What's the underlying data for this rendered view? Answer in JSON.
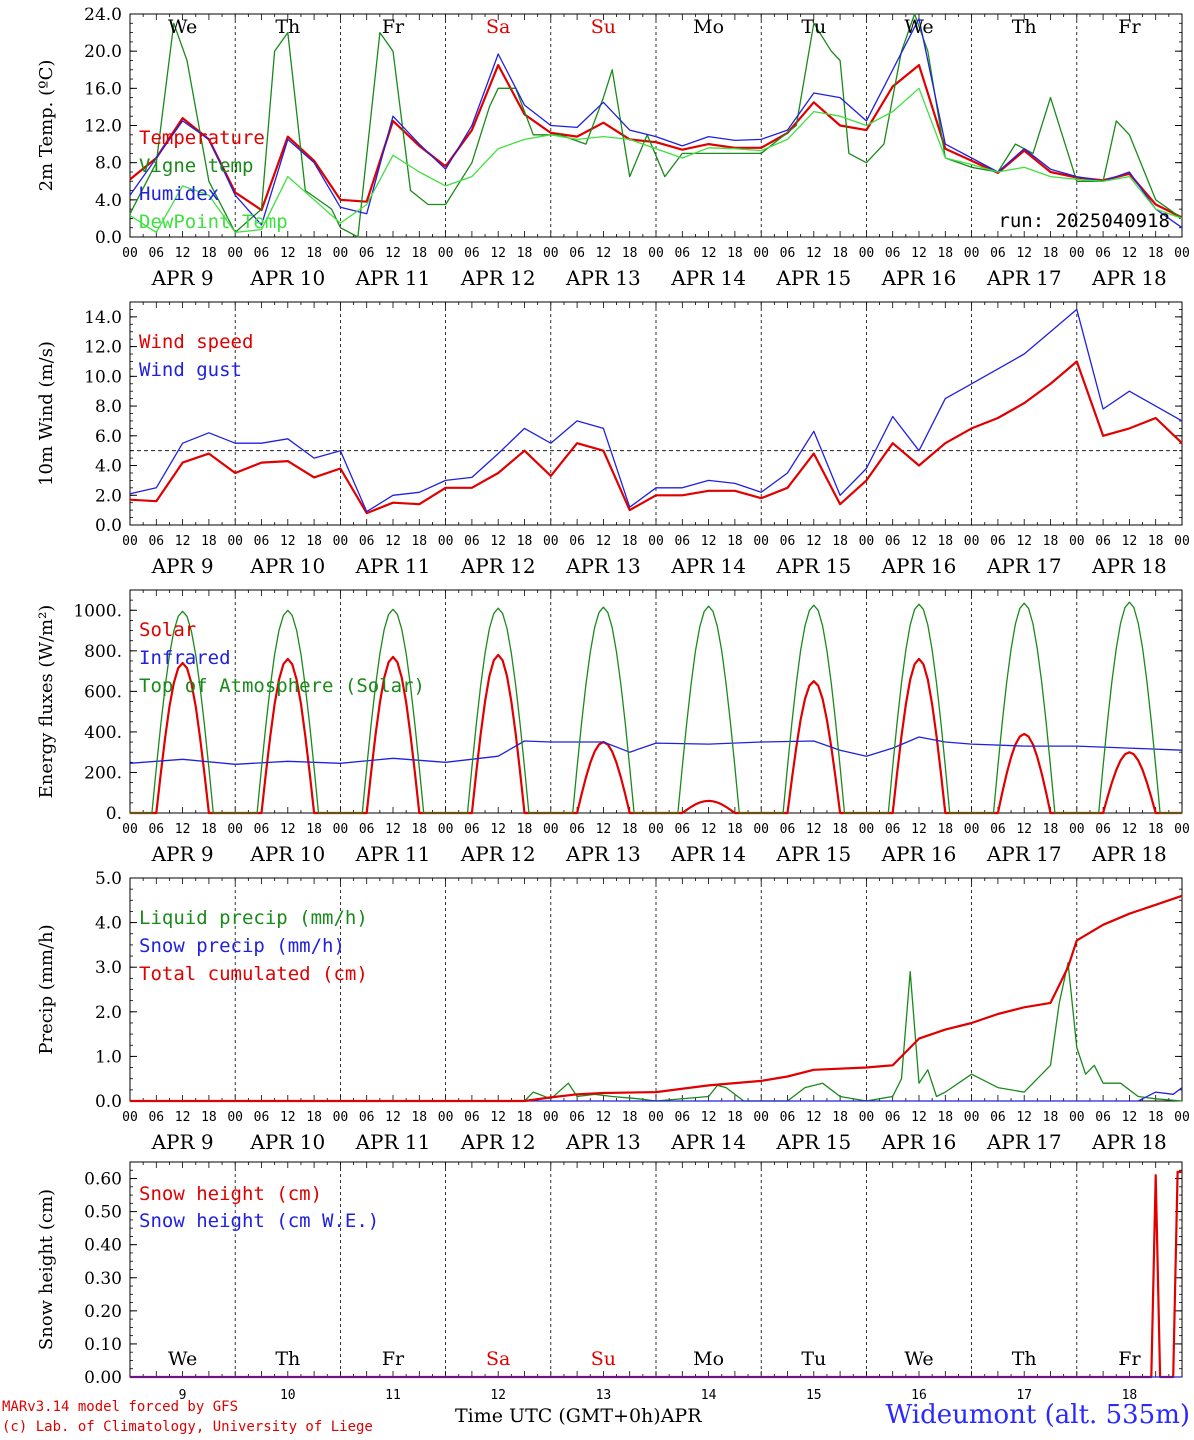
{
  "station_label": "Wideumont (alt. 535m)",
  "run_label": "run: 2025040918",
  "footer": {
    "model": "MARv3.14 model forced by GFS",
    "copyright": "(c) Lab. of Climatology, University of Liege",
    "time_axis": "Time UTC (GMT+0h)",
    "month": "APR"
  },
  "colors": {
    "red": "#e00000",
    "green": "#1a8a1a",
    "blue": "#2020e0",
    "lightgreen": "#40e040"
  },
  "day_names": [
    "We",
    "Th",
    "Fr",
    "Sa",
    "Su",
    "Mo",
    "Tu",
    "We",
    "Th",
    "Fr"
  ],
  "weekend_days": [
    3,
    4
  ],
  "day_dates": [
    "APR  9",
    "APR 10",
    "APR 11",
    "APR 12",
    "APR 13",
    "APR 14",
    "APR 15",
    "APR 16",
    "APR 17",
    "APR 18"
  ],
  "day_numbers": [
    "9",
    "10",
    "11",
    "12",
    "13",
    "14",
    "15",
    "16",
    "17",
    "18"
  ],
  "hour_ticks": [
    "00",
    "06",
    "12",
    "18"
  ],
  "chart_data": [
    {
      "type": "line",
      "ylabel": "2m Temp. (ºC)",
      "ylim": [
        0,
        24
      ],
      "yticks": [
        "0.0",
        "4.0",
        "8.0",
        "12.0",
        "16.0",
        "20.0",
        "24.0"
      ],
      "x_unit": "hours since APR 9 00 UTC",
      "x_range": [
        0,
        240
      ],
      "legend": [
        "Temperature",
        "Vigne temp",
        "Humidex",
        "DewPoint Temp"
      ],
      "series": [
        {
          "name": "Temperature",
          "color": "red",
          "x": [
            0,
            6,
            12,
            18,
            24,
            30,
            36,
            42,
            48,
            54,
            60,
            66,
            72,
            78,
            84,
            90,
            96,
            102,
            108,
            114,
            120,
            126,
            132,
            138,
            144,
            150,
            156,
            162,
            168,
            174,
            180,
            186,
            192,
            198,
            204,
            210,
            216,
            222,
            228,
            234,
            240
          ],
          "y": [
            6.2,
            8.5,
            12.8,
            10.5,
            4.8,
            2.9,
            10.8,
            8.2,
            4.0,
            3.8,
            12.5,
            9.8,
            7.6,
            11.5,
            18.5,
            13.2,
            11.2,
            10.8,
            12.3,
            10.5,
            10.2,
            9.4,
            10.0,
            9.6,
            9.6,
            11.2,
            14.5,
            12.0,
            11.5,
            16.2,
            18.5,
            9.5,
            8.2,
            6.9,
            9.3,
            7.0,
            6.4,
            6.1,
            6.8,
            3.5,
            2.1
          ]
        },
        {
          "name": "Vigne temp",
          "color": "green",
          "x": [
            0,
            6,
            10,
            13,
            18,
            24,
            30,
            33,
            36,
            40,
            46,
            48,
            52,
            57,
            60,
            64,
            68,
            72,
            78,
            82,
            84,
            88,
            92,
            98,
            104,
            108,
            110,
            114,
            118,
            122,
            126,
            132,
            138,
            144,
            152,
            156,
            160,
            162,
            164,
            168,
            172,
            176,
            179,
            182,
            186,
            192,
            198,
            202,
            206,
            210,
            216,
            222,
            225,
            228,
            234,
            240
          ],
          "y": [
            2.5,
            8.0,
            23.0,
            19.0,
            6.0,
            0.5,
            3.0,
            20.0,
            22.0,
            5.0,
            3.0,
            1.0,
            0.0,
            22.0,
            20.0,
            5.0,
            3.5,
            3.5,
            8.0,
            14.0,
            16.0,
            16.0,
            11.0,
            11.0,
            10.0,
            15.0,
            18.0,
            6.5,
            11.0,
            6.5,
            9.0,
            9.0,
            9.0,
            9.0,
            12.0,
            23.0,
            20.0,
            19.0,
            9.0,
            8.0,
            10.0,
            20.0,
            24.0,
            20.0,
            8.5,
            7.5,
            7.0,
            10.0,
            9.0,
            15.0,
            6.0,
            6.0,
            12.5,
            11.0,
            4.0,
            2.0
          ]
        },
        {
          "name": "Humidex",
          "color": "blue",
          "x": [
            0,
            6,
            12,
            18,
            24,
            30,
            36,
            42,
            48,
            54,
            60,
            66,
            72,
            78,
            84,
            90,
            96,
            102,
            108,
            114,
            120,
            126,
            132,
            138,
            144,
            150,
            156,
            162,
            168,
            174,
            180,
            186,
            192,
            198,
            204,
            210,
            216,
            222,
            228,
            234,
            240
          ],
          "y": [
            4.5,
            8.5,
            12.5,
            10.5,
            4.5,
            1.3,
            10.5,
            8.0,
            3.2,
            2.5,
            13.0,
            10.0,
            7.3,
            12.0,
            19.7,
            14.2,
            12.0,
            11.8,
            14.5,
            11.5,
            10.8,
            9.8,
            10.8,
            10.4,
            10.5,
            11.5,
            15.5,
            15.0,
            12.5,
            18.0,
            23.5,
            10.0,
            8.5,
            7.0,
            9.5,
            7.3,
            6.5,
            6.0,
            7.0,
            3.0,
            1.0
          ]
        },
        {
          "name": "DewPoint Temp",
          "color": "lightgreen",
          "x": [
            0,
            6,
            12,
            18,
            24,
            30,
            36,
            42,
            48,
            54,
            60,
            66,
            72,
            78,
            84,
            90,
            96,
            102,
            108,
            114,
            120,
            126,
            132,
            138,
            144,
            150,
            156,
            162,
            168,
            174,
            180,
            186,
            192,
            198,
            204,
            210,
            216,
            222,
            228,
            234,
            240
          ],
          "y": [
            2.3,
            0.5,
            5.5,
            4.5,
            0.5,
            0.8,
            6.5,
            4.0,
            1.5,
            3.5,
            8.8,
            7.0,
            5.5,
            6.5,
            9.5,
            10.5,
            11.0,
            10.5,
            10.8,
            10.5,
            9.5,
            8.5,
            9.6,
            9.5,
            9.3,
            10.5,
            13.5,
            13.0,
            12.0,
            13.5,
            16.0,
            8.5,
            7.8,
            7.0,
            7.5,
            6.5,
            6.2,
            6.0,
            6.5,
            3.0,
            2.0
          ]
        }
      ]
    },
    {
      "type": "line",
      "ylabel": "10m Wind (m/s)",
      "ylim": [
        0,
        15
      ],
      "yticks": [
        "0.0",
        "2.0",
        "4.0",
        "6.0",
        "8.0",
        "10.0",
        "12.0",
        "14.0"
      ],
      "x_range": [
        0,
        240
      ],
      "reference_line": 5.0,
      "legend": [
        "Wind speed",
        "Wind gust"
      ],
      "series": [
        {
          "name": "Wind speed",
          "color": "red",
          "x": [
            0,
            6,
            12,
            18,
            24,
            30,
            36,
            42,
            48,
            54,
            60,
            66,
            72,
            78,
            84,
            90,
            96,
            102,
            108,
            114,
            120,
            126,
            132,
            138,
            144,
            150,
            156,
            162,
            168,
            174,
            180,
            186,
            192,
            198,
            204,
            210,
            216,
            222,
            228,
            234,
            240
          ],
          "y": [
            1.7,
            1.6,
            4.2,
            4.8,
            3.5,
            4.2,
            4.3,
            3.2,
            3.8,
            0.8,
            1.5,
            1.4,
            2.5,
            2.5,
            3.5,
            5.0,
            3.3,
            5.5,
            5.0,
            1.0,
            2.0,
            2.0,
            2.3,
            2.3,
            1.8,
            2.5,
            4.8,
            1.4,
            3.0,
            5.5,
            4.0,
            5.5,
            6.5,
            7.2,
            8.2,
            9.5,
            11.0,
            6.0,
            6.5,
            7.2,
            5.5
          ]
        },
        {
          "name": "Wind gust",
          "color": "blue",
          "x": [
            0,
            6,
            12,
            18,
            24,
            30,
            36,
            42,
            48,
            54,
            60,
            66,
            72,
            78,
            84,
            90,
            96,
            102,
            108,
            114,
            120,
            126,
            132,
            138,
            144,
            150,
            156,
            162,
            168,
            174,
            180,
            186,
            192,
            198,
            204,
            210,
            216,
            222,
            228,
            234,
            240
          ],
          "y": [
            2.1,
            2.5,
            5.5,
            6.2,
            5.5,
            5.5,
            5.8,
            4.5,
            5.0,
            0.9,
            2.0,
            2.2,
            3.0,
            3.2,
            4.8,
            6.5,
            5.5,
            7.0,
            6.5,
            1.2,
            2.5,
            2.5,
            3.0,
            2.8,
            2.2,
            3.5,
            6.3,
            2.0,
            3.8,
            7.3,
            5.0,
            8.5,
            9.5,
            10.5,
            11.5,
            13.0,
            14.5,
            7.8,
            9.0,
            8.0,
            7.0
          ]
        }
      ]
    },
    {
      "type": "line",
      "ylabel": "Energy fluxes (W/m²)",
      "ylim": [
        0,
        1100
      ],
      "yticks": [
        "0.",
        "200.",
        "400.",
        "600.",
        "800.",
        "1000."
      ],
      "x_range": [
        0,
        240
      ],
      "legend": [
        "Solar",
        "Infrared",
        "Top of Atmosphere (Solar)"
      ],
      "series": [
        {
          "name": "Solar",
          "color": "red",
          "days_peak": [
            740,
            760,
            770,
            780,
            350,
            60,
            650,
            760,
            390,
            300
          ]
        },
        {
          "name": "Infrared",
          "color": "blue",
          "x": [
            0,
            12,
            24,
            36,
            48,
            60,
            72,
            84,
            90,
            96,
            108,
            114,
            120,
            132,
            144,
            156,
            162,
            168,
            174,
            180,
            186,
            192,
            204,
            216,
            228,
            240
          ],
          "y": [
            245,
            265,
            240,
            255,
            245,
            270,
            250,
            280,
            355,
            350,
            350,
            300,
            345,
            340,
            350,
            355,
            310,
            280,
            320,
            375,
            350,
            340,
            330,
            330,
            320,
            310
          ]
        },
        {
          "name": "Top of Atmosphere (Solar)",
          "color": "green",
          "days_peak": [
            995,
            1000,
            1005,
            1010,
            1015,
            1020,
            1025,
            1030,
            1035,
            1040
          ]
        }
      ]
    },
    {
      "type": "line",
      "ylabel": "Precip (mm/h)",
      "ylim": [
        0,
        5
      ],
      "yticks": [
        "0.0",
        "1.0",
        "2.0",
        "3.0",
        "4.0",
        "5.0"
      ],
      "x_range": [
        0,
        240
      ],
      "legend": [
        "Liquid precip (mm/h)",
        "Snow precip (mm/h)",
        "Total cumulated (cm)"
      ],
      "series": [
        {
          "name": "Liquid precip (mm/h)",
          "color": "green",
          "x": [
            0,
            90,
            92,
            96,
            100,
            102,
            106,
            110,
            116,
            120,
            132,
            134,
            136,
            140,
            150,
            154,
            158,
            162,
            168,
            174,
            176,
            178,
            180,
            182,
            184,
            186,
            192,
            198,
            204,
            210,
            212,
            214,
            216,
            218,
            220,
            222,
            226,
            230,
            234,
            240
          ],
          "y": [
            0,
            0,
            0.2,
            0.05,
            0.4,
            0.1,
            0.15,
            0.1,
            0.05,
            0,
            0.1,
            0.35,
            0.3,
            0,
            0,
            0.3,
            0.4,
            0.1,
            0,
            0.1,
            0.5,
            2.9,
            0.4,
            0.7,
            0.1,
            0.2,
            0.6,
            0.3,
            0.2,
            0.8,
            2.2,
            3.1,
            1.2,
            0.6,
            0.8,
            0.4,
            0.4,
            0.1,
            0.05,
            0.0
          ]
        },
        {
          "name": "Snow precip (mm/h)",
          "color": "blue",
          "x": [
            0,
            230,
            234,
            238,
            240
          ],
          "y": [
            0,
            0,
            0.2,
            0.15,
            0.3
          ]
        },
        {
          "name": "Total cumulated (cm)",
          "color": "red",
          "x": [
            0,
            90,
            96,
            102,
            108,
            120,
            132,
            144,
            150,
            156,
            168,
            174,
            176,
            180,
            186,
            192,
            198,
            204,
            210,
            212,
            214,
            216,
            222,
            228,
            234,
            240
          ],
          "y": [
            0,
            0,
            0.08,
            0.15,
            0.18,
            0.2,
            0.35,
            0.45,
            0.55,
            0.7,
            0.75,
            0.8,
            1.0,
            1.4,
            1.6,
            1.75,
            1.95,
            2.1,
            2.2,
            2.6,
            3.0,
            3.6,
            3.95,
            4.2,
            4.4,
            4.6
          ]
        }
      ]
    },
    {
      "type": "line",
      "ylabel": "Snow height (cm)",
      "ylim": [
        0,
        0.65
      ],
      "yticks": [
        "0.00",
        "0.10",
        "0.20",
        "0.30",
        "0.40",
        "0.50",
        "0.60"
      ],
      "x_range": [
        0,
        240
      ],
      "legend": [
        "Snow height (cm)",
        "Snow height (cm W.E.)"
      ],
      "series": [
        {
          "name": "Snow height (cm)",
          "color": "red",
          "x": [
            0,
            233,
            234,
            235,
            238,
            239,
            240
          ],
          "y": [
            0,
            0,
            0.61,
            0,
            0,
            0.62,
            0.62
          ]
        },
        {
          "name": "Snow height (cm W.E.)",
          "color": "blue",
          "x": [
            0,
            240
          ],
          "y": [
            0,
            0
          ]
        }
      ]
    }
  ]
}
